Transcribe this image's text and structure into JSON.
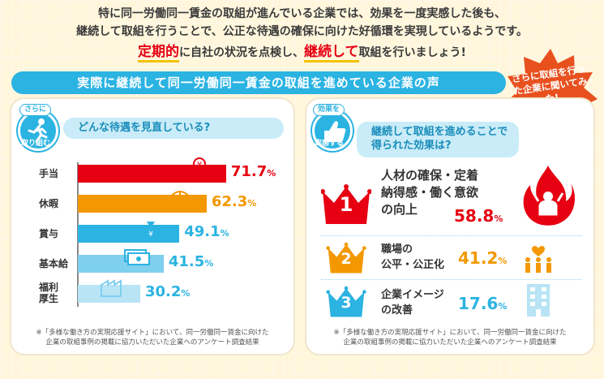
{
  "intro": {
    "line1": "特に同一労働同一賃金の取組が進んでいる企業では、効果を一度実感した後も、",
    "line2": "継続して取組を行うことで、公正な待遇の確保に向けた好循環を実現しているようです。",
    "line3_em1": "定期的",
    "line3_mid": "に自社の状況を点検し、",
    "line3_em2": "継続して",
    "line3_end": "取組を行いましょう!"
  },
  "banner": {
    "title": "実際に継続して同一労働同一賃金の取組を進めている企業の声"
  },
  "burst": {
    "text": "さらに取組を行った企業に聞いてみた!",
    "color": "#e8501e"
  },
  "left": {
    "badge_top": "さらに",
    "badge_bottom": "取り組む",
    "question": "どんな待遇を見直している?",
    "footnote_l1": "※「多様な働き方の実現応援サイト」において、同一労働同一賃金に向けた",
    "footnote_l2": "企業の取組事例の掲載に協力いただいた企業へのアンケート調査結果"
  },
  "right": {
    "badge_top": "効果を",
    "badge_bottom": "実感する",
    "question_l1": "継続して取組を進めることで",
    "question_l2": "得られた効果は?",
    "footnote_l1": "※「多様な働き方の実現応援サイト」において、同一労働同一賃金に向けた",
    "footnote_l2": "企業の取組事例の掲載に協力いただいた企業へのアンケート調査結果",
    "ranks": [
      {
        "rank": "1",
        "lines": [
          "人材の確保・定着",
          "納得感・働く意欲",
          "の向上"
        ],
        "value": "58.8",
        "unit": "%",
        "crown_color": "#e60012",
        "icon": "fire-person-icon"
      },
      {
        "rank": "2",
        "lines": [
          "職場の",
          "公平・公正化"
        ],
        "value": "41.2",
        "unit": "%",
        "crown_color": "#f39800",
        "icon": "people-heart-icon"
      },
      {
        "rank": "3",
        "lines": [
          "企業イメージ",
          "の改善"
        ],
        "value": "17.6",
        "unit": "%",
        "crown_color": "#2bb3e2",
        "icon": "building-icon"
      }
    ]
  },
  "chart_data": {
    "type": "bar",
    "orientation": "horizontal",
    "title": "どんな待遇を見直している?",
    "categories": [
      "手当",
      "休暇",
      "賞与",
      "基本給",
      "福利厚生"
    ],
    "values": [
      71.7,
      62.3,
      49.1,
      41.5,
      30.2
    ],
    "unit": "%",
    "xlim": [
      0,
      100
    ],
    "colors": [
      "#e60012",
      "#f39800",
      "#2bb3e2",
      "#7fcfee",
      "#b8e4f5"
    ],
    "label_colors": [
      "#e60012",
      "#f39800",
      "#2bb3e2",
      "#2bb3e2",
      "#2bb3e2"
    ],
    "icons": [
      "yen-hand-icon",
      "beach-umbrella-icon",
      "money-bag-icon",
      "banknotes-icon",
      "factory-icon"
    ]
  }
}
